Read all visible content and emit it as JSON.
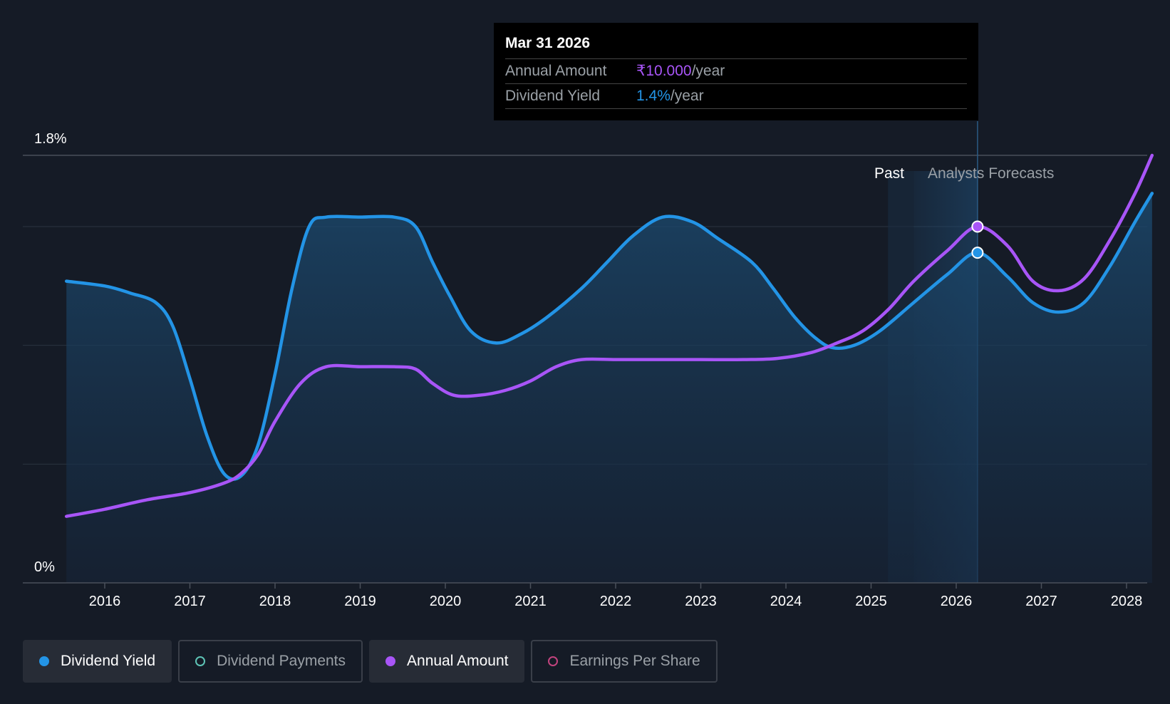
{
  "tooltip": {
    "date": "Mar 31 2026",
    "annual_amount_label": "Annual Amount",
    "annual_amount_value": "₹10.000",
    "annual_amount_unit": "/year",
    "dividend_yield_label": "Dividend Yield",
    "dividend_yield_value": "1.4%",
    "dividend_yield_unit": "/year"
  },
  "regions": {
    "past": "Past",
    "forecast": "Analysts Forecasts"
  },
  "legend": [
    {
      "label": "Dividend Yield",
      "color": "#2394e6",
      "active": true
    },
    {
      "label": "Dividend Payments",
      "color": "#5ec4b6",
      "active": false
    },
    {
      "label": "Annual Amount",
      "color": "#a855f7",
      "active": true
    },
    {
      "label": "Earnings Per Share",
      "color": "#c2437e",
      "active": false
    }
  ],
  "chart_data": {
    "type": "line",
    "y_ticks": [
      "1.8%",
      "0%"
    ],
    "ylim": [
      0,
      1.8
    ],
    "x_ticks": [
      "2016",
      "2017",
      "2018",
      "2019",
      "2020",
      "2021",
      "2022",
      "2023",
      "2024",
      "2025",
      "2026",
      "2027",
      "2028"
    ],
    "xlim": [
      2015.6,
      2028.3
    ],
    "forecast_start": 2025.5,
    "highlight_x": 2026.25,
    "series": [
      {
        "name": "Dividend Yield",
        "color": "#2394e6",
        "points": [
          [
            2015.55,
            1.27
          ],
          [
            2016.0,
            1.25
          ],
          [
            2016.3,
            1.22
          ],
          [
            2016.6,
            1.18
          ],
          [
            2016.8,
            1.08
          ],
          [
            2017.0,
            0.86
          ],
          [
            2017.2,
            0.62
          ],
          [
            2017.4,
            0.46
          ],
          [
            2017.6,
            0.45
          ],
          [
            2017.8,
            0.58
          ],
          [
            2018.0,
            0.88
          ],
          [
            2018.2,
            1.24
          ],
          [
            2018.4,
            1.5
          ],
          [
            2018.6,
            1.54
          ],
          [
            2019.0,
            1.54
          ],
          [
            2019.4,
            1.54
          ],
          [
            2019.65,
            1.5
          ],
          [
            2019.85,
            1.35
          ],
          [
            2020.05,
            1.21
          ],
          [
            2020.3,
            1.06
          ],
          [
            2020.6,
            1.01
          ],
          [
            2020.9,
            1.05
          ],
          [
            2021.2,
            1.12
          ],
          [
            2021.6,
            1.24
          ],
          [
            2021.9,
            1.35
          ],
          [
            2022.2,
            1.46
          ],
          [
            2022.55,
            1.54
          ],
          [
            2022.9,
            1.52
          ],
          [
            2023.2,
            1.45
          ],
          [
            2023.6,
            1.35
          ],
          [
            2023.85,
            1.24
          ],
          [
            2024.1,
            1.12
          ],
          [
            2024.35,
            1.03
          ],
          [
            2024.55,
            0.99
          ],
          [
            2024.8,
            1.0
          ],
          [
            2025.1,
            1.06
          ],
          [
            2025.5,
            1.18
          ],
          [
            2025.9,
            1.3
          ],
          [
            2026.25,
            1.39
          ],
          [
            2026.6,
            1.29
          ],
          [
            2026.9,
            1.18
          ],
          [
            2027.2,
            1.14
          ],
          [
            2027.5,
            1.18
          ],
          [
            2027.8,
            1.33
          ],
          [
            2028.1,
            1.52
          ],
          [
            2028.3,
            1.64
          ]
        ]
      },
      {
        "name": "Annual Amount",
        "color": "#a855f7",
        "points": [
          [
            2015.55,
            0.28
          ],
          [
            2016.0,
            0.31
          ],
          [
            2016.5,
            0.35
          ],
          [
            2017.0,
            0.38
          ],
          [
            2017.4,
            0.42
          ],
          [
            2017.6,
            0.46
          ],
          [
            2017.8,
            0.54
          ],
          [
            2018.0,
            0.68
          ],
          [
            2018.3,
            0.84
          ],
          [
            2018.6,
            0.91
          ],
          [
            2019.0,
            0.91
          ],
          [
            2019.4,
            0.91
          ],
          [
            2019.65,
            0.9
          ],
          [
            2019.85,
            0.84
          ],
          [
            2020.1,
            0.79
          ],
          [
            2020.4,
            0.79
          ],
          [
            2020.7,
            0.81
          ],
          [
            2021.0,
            0.85
          ],
          [
            2021.3,
            0.91
          ],
          [
            2021.6,
            0.94
          ],
          [
            2022.0,
            0.94
          ],
          [
            2022.5,
            0.94
          ],
          [
            2023.0,
            0.94
          ],
          [
            2023.5,
            0.94
          ],
          [
            2023.9,
            0.945
          ],
          [
            2024.3,
            0.97
          ],
          [
            2024.6,
            1.01
          ],
          [
            2024.9,
            1.06
          ],
          [
            2025.2,
            1.15
          ],
          [
            2025.5,
            1.27
          ],
          [
            2025.9,
            1.4
          ],
          [
            2026.25,
            1.5
          ],
          [
            2026.6,
            1.42
          ],
          [
            2026.9,
            1.27
          ],
          [
            2027.2,
            1.23
          ],
          [
            2027.5,
            1.28
          ],
          [
            2027.8,
            1.44
          ],
          [
            2028.1,
            1.64
          ],
          [
            2028.3,
            1.8
          ]
        ]
      }
    ]
  }
}
